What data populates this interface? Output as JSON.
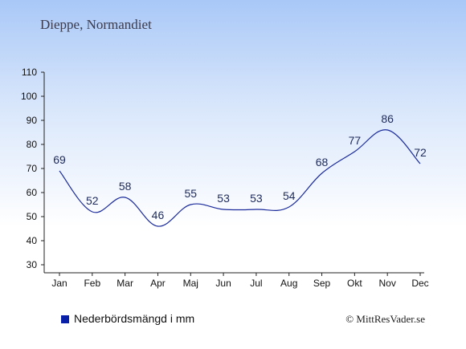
{
  "header": {
    "title": "Dieppe, Normandiet"
  },
  "legend": {
    "label": "Nederbördsmängd i mm"
  },
  "footer": {
    "copyright": "© MittResVader.se"
  },
  "colors": {
    "line": "#1a2a9a",
    "swatch": "#0a1fa8"
  },
  "chart_data": {
    "type": "line",
    "categories": [
      "Jan",
      "Feb",
      "Mar",
      "Apr",
      "Maj",
      "Jun",
      "Jul",
      "Aug",
      "Sep",
      "Okt",
      "Nov",
      "Dec"
    ],
    "series": [
      {
        "values": [
          69,
          52,
          58,
          46,
          55,
          53,
          53,
          54,
          68,
          77,
          86,
          72
        ]
      }
    ],
    "ylim": [
      30,
      110
    ],
    "yticks": [
      30,
      40,
      50,
      60,
      70,
      80,
      90,
      100,
      110
    ],
    "grid": false,
    "data_labels": true
  }
}
